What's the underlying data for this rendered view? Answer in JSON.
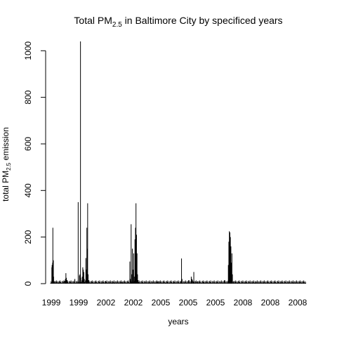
{
  "chart_data": {
    "type": "bar",
    "title": "Total PM",
    "title_subscript": "2.5",
    "title_suffix": " in Baltimore City by specificed years",
    "xlabel": "years",
    "ylabel_prefix": "total PM",
    "ylabel_subscript": "2.5",
    "ylabel_suffix": " emission",
    "ylim": [
      0,
      1040
    ],
    "yticks": [
      0,
      200,
      400,
      600,
      800,
      1000
    ],
    "xtick_labels": [
      "1999",
      "1999",
      "2002",
      "2002",
      "2005",
      "2005",
      "2005",
      "2008",
      "2008",
      "2008"
    ],
    "bar_color": "#000000",
    "grid": false,
    "n_obs": 1000,
    "spikes": [
      {
        "i": 5,
        "v": 70
      },
      {
        "i": 6,
        "v": 80
      },
      {
        "i": 7,
        "v": 60
      },
      {
        "i": 8,
        "v": 90
      },
      {
        "i": 9,
        "v": 240
      },
      {
        "i": 10,
        "v": 100
      },
      {
        "i": 11,
        "v": 100
      },
      {
        "i": 12,
        "v": 30
      },
      {
        "i": 15,
        "v": 10
      },
      {
        "i": 20,
        "v": 5
      },
      {
        "i": 30,
        "v": 8
      },
      {
        "i": 55,
        "v": 12
      },
      {
        "i": 58,
        "v": 20
      },
      {
        "i": 60,
        "v": 45
      },
      {
        "i": 62,
        "v": 25
      },
      {
        "i": 64,
        "v": 15
      },
      {
        "i": 80,
        "v": 10
      },
      {
        "i": 95,
        "v": 20
      },
      {
        "i": 108,
        "v": 350
      },
      {
        "i": 113,
        "v": 35
      },
      {
        "i": 115,
        "v": 40
      },
      {
        "i": 117,
        "v": 1040
      },
      {
        "i": 118,
        "v": 25
      },
      {
        "i": 124,
        "v": 30
      },
      {
        "i": 126,
        "v": 70
      },
      {
        "i": 128,
        "v": 60
      },
      {
        "i": 130,
        "v": 50
      },
      {
        "i": 132,
        "v": 20
      },
      {
        "i": 138,
        "v": 110
      },
      {
        "i": 140,
        "v": 60
      },
      {
        "i": 142,
        "v": 240
      },
      {
        "i": 143,
        "v": 150
      },
      {
        "i": 145,
        "v": 345
      },
      {
        "i": 147,
        "v": 40
      },
      {
        "i": 150,
        "v": 15
      },
      {
        "i": 160,
        "v": 8
      },
      {
        "i": 200,
        "v": 3
      },
      {
        "i": 215,
        "v": 10
      },
      {
        "i": 240,
        "v": 10
      },
      {
        "i": 250,
        "v": 5
      },
      {
        "i": 280,
        "v": 5
      },
      {
        "i": 310,
        "v": 95
      },
      {
        "i": 312,
        "v": 20
      },
      {
        "i": 315,
        "v": 255
      },
      {
        "i": 318,
        "v": 40
      },
      {
        "i": 320,
        "v": 150
      },
      {
        "i": 322,
        "v": 60
      },
      {
        "i": 325,
        "v": 130
      },
      {
        "i": 327,
        "v": 30
      },
      {
        "i": 330,
        "v": 190
      },
      {
        "i": 332,
        "v": 240
      },
      {
        "i": 334,
        "v": 345
      },
      {
        "i": 336,
        "v": 210
      },
      {
        "i": 338,
        "v": 130
      },
      {
        "i": 340,
        "v": 40
      },
      {
        "i": 342,
        "v": 15
      },
      {
        "i": 345,
        "v": 5
      },
      {
        "i": 360,
        "v": 5
      },
      {
        "i": 390,
        "v": 3
      },
      {
        "i": 420,
        "v": 10
      },
      {
        "i": 450,
        "v": 5
      },
      {
        "i": 480,
        "v": 5
      },
      {
        "i": 512,
        "v": 108
      },
      {
        "i": 514,
        "v": 20
      },
      {
        "i": 540,
        "v": 15
      },
      {
        "i": 550,
        "v": 30
      },
      {
        "i": 553,
        "v": 20
      },
      {
        "i": 560,
        "v": 50
      },
      {
        "i": 575,
        "v": 10
      },
      {
        "i": 600,
        "v": 8
      },
      {
        "i": 650,
        "v": 5
      },
      {
        "i": 680,
        "v": 15
      },
      {
        "i": 695,
        "v": 80
      },
      {
        "i": 697,
        "v": 180
      },
      {
        "i": 699,
        "v": 225
      },
      {
        "i": 701,
        "v": 220
      },
      {
        "i": 703,
        "v": 200
      },
      {
        "i": 705,
        "v": 160
      },
      {
        "i": 707,
        "v": 90
      },
      {
        "i": 709,
        "v": 130
      },
      {
        "i": 711,
        "v": 40
      },
      {
        "i": 715,
        "v": 10
      },
      {
        "i": 730,
        "v": 8
      },
      {
        "i": 760,
        "v": 5
      },
      {
        "i": 800,
        "v": 5
      },
      {
        "i": 850,
        "v": 5
      },
      {
        "i": 900,
        "v": 5
      },
      {
        "i": 950,
        "v": 5
      },
      {
        "i": 990,
        "v": 5
      }
    ]
  }
}
